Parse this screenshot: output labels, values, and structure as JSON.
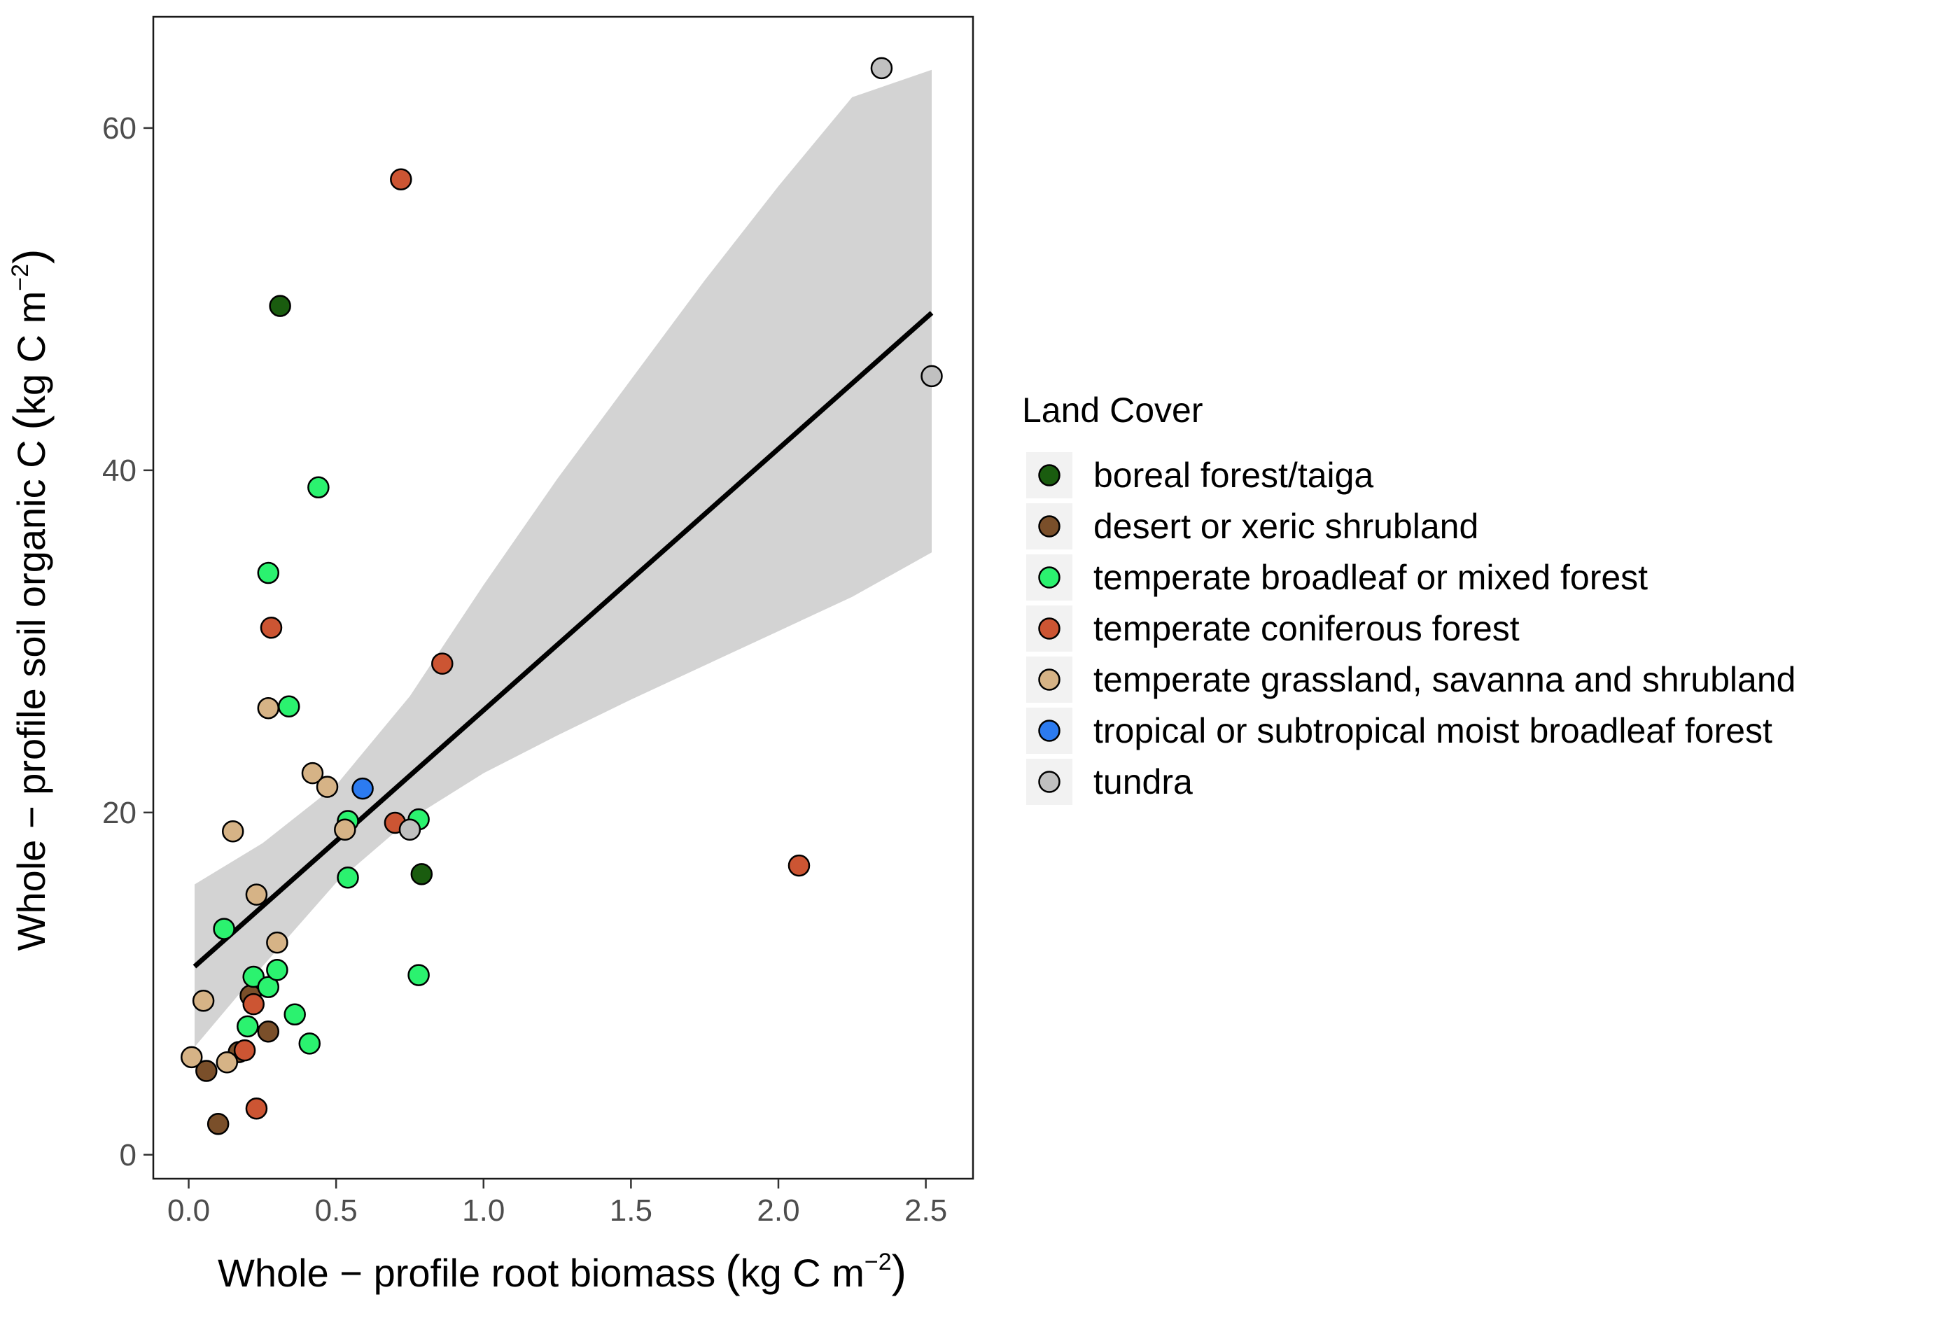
{
  "chart_data": {
    "type": "scatter",
    "xlabel": "Whole − profile root biomass",
    "xlabel_unit": "kg C m",
    "xlabel_exp": "−2",
    "ylabel": "Whole − profile soil organic C",
    "ylabel_unit": "kg C m",
    "ylabel_exp": "−2",
    "xlim": [
      -0.12,
      2.66
    ],
    "ylim": [
      -1.4,
      66.5
    ],
    "x_ticks": [
      0.0,
      0.5,
      1.0,
      1.5,
      2.0,
      2.5
    ],
    "x_tick_labels": [
      "0.0",
      "0.5",
      "1.0",
      "1.5",
      "2.0",
      "2.5"
    ],
    "y_ticks": [
      0,
      20,
      40,
      60
    ],
    "y_tick_labels": [
      "0",
      "20",
      "40",
      "60"
    ],
    "grid": false,
    "legend": {
      "title": "Land Cover",
      "position": "right"
    },
    "series": [
      {
        "name": "boreal forest/taiga",
        "color": "#1a5c0f",
        "points": [
          [
            0.31,
            49.6
          ],
          [
            0.79,
            16.4
          ]
        ]
      },
      {
        "name": "desert or xeric shrubland",
        "color": "#7a4f2a",
        "points": [
          [
            0.06,
            4.9
          ],
          [
            0.1,
            1.8
          ],
          [
            0.17,
            6.0
          ],
          [
            0.21,
            9.3
          ],
          [
            0.27,
            7.2
          ]
        ]
      },
      {
        "name": "temperate broadleaf or mixed forest",
        "color": "#2bf26f",
        "points": [
          [
            0.12,
            13.2
          ],
          [
            0.2,
            7.5
          ],
          [
            0.22,
            10.4
          ],
          [
            0.27,
            9.8
          ],
          [
            0.27,
            34.0
          ],
          [
            0.3,
            10.8
          ],
          [
            0.34,
            26.2
          ],
          [
            0.36,
            8.2
          ],
          [
            0.41,
            6.5
          ],
          [
            0.44,
            39.0
          ],
          [
            0.54,
            19.5
          ],
          [
            0.54,
            16.2
          ],
          [
            0.78,
            10.5
          ],
          [
            0.78,
            19.6
          ]
        ]
      },
      {
        "name": "temperate coniferous forest",
        "color": "#cc5533",
        "points": [
          [
            0.19,
            6.1
          ],
          [
            0.22,
            8.8
          ],
          [
            0.23,
            2.7
          ],
          [
            0.28,
            30.8
          ],
          [
            0.7,
            19.4
          ],
          [
            0.72,
            57.0
          ],
          [
            0.86,
            28.7
          ],
          [
            2.07,
            16.9
          ]
        ]
      },
      {
        "name": "temperate grassland, savanna and shrubland",
        "color": "#d6b386",
        "points": [
          [
            0.01,
            5.7
          ],
          [
            0.05,
            9.0
          ],
          [
            0.13,
            5.4
          ],
          [
            0.15,
            18.9
          ],
          [
            0.23,
            15.2
          ],
          [
            0.27,
            26.1
          ],
          [
            0.3,
            12.4
          ],
          [
            0.42,
            22.3
          ],
          [
            0.47,
            21.5
          ],
          [
            0.53,
            19.0
          ]
        ]
      },
      {
        "name": "tropical or subtropical moist broadleaf forest",
        "color": "#2c7bf0",
        "points": [
          [
            0.59,
            21.4
          ]
        ]
      },
      {
        "name": "tundra",
        "color": "#c0c0c0",
        "points": [
          [
            0.75,
            19.0
          ],
          [
            2.35,
            63.5
          ],
          [
            2.52,
            45.5
          ]
        ]
      }
    ],
    "fit": {
      "type": "linear",
      "x0": 0.02,
      "y0": 11.0,
      "x1": 2.52,
      "y1": 49.2
    },
    "ci_band": {
      "x": [
        0.02,
        0.25,
        0.5,
        0.75,
        1.0,
        1.25,
        1.5,
        1.75,
        2.0,
        2.25,
        2.52
      ],
      "lower": [
        6.3,
        11.0,
        15.9,
        19.6,
        22.3,
        24.5,
        26.6,
        28.6,
        30.6,
        32.6,
        35.2
      ],
      "upper": [
        15.8,
        18.2,
        21.6,
        26.8,
        33.3,
        39.5,
        45.3,
        51.1,
        56.6,
        61.8,
        63.4
      ]
    }
  }
}
